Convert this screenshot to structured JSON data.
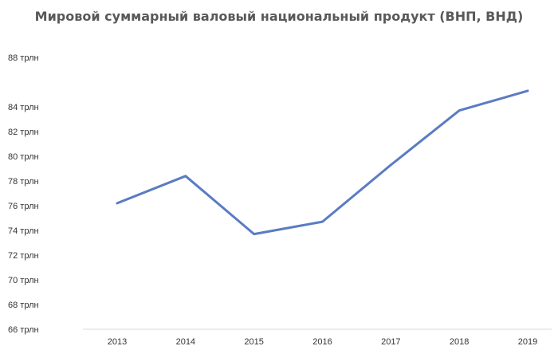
{
  "chart_data": {
    "type": "line",
    "title": "Мировой суммарный валовый национальный продукт (ВНП, ВНД)",
    "xlabel": "",
    "ylabel": "",
    "categories": [
      "2013",
      "2014",
      "2015",
      "2016",
      "2017",
      "2018",
      "2019"
    ],
    "series": [
      {
        "values": [
          76.2,
          78.4,
          73.7,
          74.7,
          79.3,
          83.7,
          85.3
        ],
        "color": "#5b7bc3"
      }
    ],
    "ylim": [
      66,
      88
    ],
    "yticks": [
      {
        "value": 88,
        "label": "88 трлн"
      },
      {
        "value": 84,
        "label": "84 трлн"
      },
      {
        "value": 82,
        "label": "82 трлн"
      },
      {
        "value": 80,
        "label": "80 трлн"
      },
      {
        "value": 78,
        "label": "78 трлн"
      },
      {
        "value": 76,
        "label": "76 трлн"
      },
      {
        "value": 74,
        "label": "74 трлн"
      },
      {
        "value": 72,
        "label": "72 трлн"
      },
      {
        "value": 70,
        "label": "70 трлн"
      },
      {
        "value": 68,
        "label": "68 трлн"
      },
      {
        "value": 66,
        "label": "66 трлн"
      }
    ],
    "grid": false,
    "legend": "none",
    "axis_color": "#d9d9d9"
  }
}
